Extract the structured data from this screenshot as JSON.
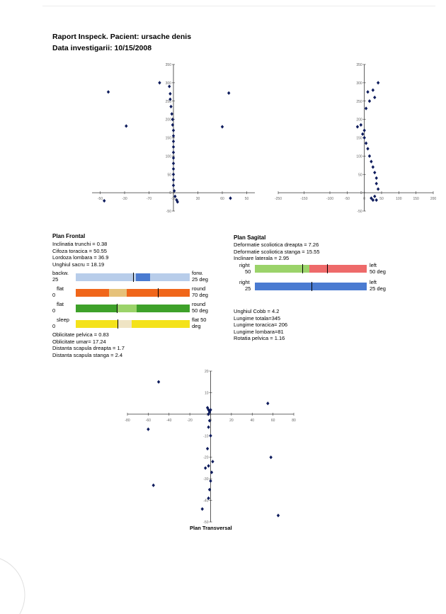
{
  "header": {
    "title": "Raport Inspeck. Pacient: ursache   denis",
    "date": "Data investigarii: 10/15/2008"
  },
  "plots": {
    "frontal": {
      "x_ticks": [
        "-90",
        "-80",
        "-70",
        "-60",
        "-50",
        "-40",
        "-30",
        "-20",
        "-10",
        "0",
        "10",
        "20",
        "30",
        "40",
        "50",
        "60",
        "70",
        "80",
        "90"
      ],
      "x_ticks_show": [
        "-50",
        "-30",
        "-70",
        "50",
        "30",
        "60",
        "50"
      ],
      "y_ticks": [
        "350",
        "300",
        "250",
        "200",
        "150",
        "100",
        "50",
        "0",
        "-50"
      ]
    },
    "transversal": {
      "title": "Plan Transversal"
    }
  },
  "chart_data": [
    {
      "type": "scatter",
      "title": "",
      "x_ticks": [
        "-50",
        "-30",
        "-70",
        "-10",
        "30",
        "60",
        "50"
      ],
      "y_ticks": [
        "350",
        "300",
        "250",
        "200",
        "150",
        "100",
        "50",
        "0",
        "-50"
      ],
      "xlim": [
        -100,
        100
      ],
      "ylim": [
        -50,
        350
      ],
      "points": [
        [
          -17,
          300
        ],
        [
          -5,
          290
        ],
        [
          -4,
          270
        ],
        [
          -4,
          255
        ],
        [
          -3,
          235
        ],
        [
          -2,
          215
        ],
        [
          -1,
          200
        ],
        [
          -1,
          185
        ],
        [
          0,
          170
        ],
        [
          0,
          155
        ],
        [
          0,
          140
        ],
        [
          0,
          125
        ],
        [
          0,
          110
        ],
        [
          0,
          95
        ],
        [
          0,
          80
        ],
        [
          0,
          65
        ],
        [
          0,
          50
        ],
        [
          0,
          35
        ],
        [
          0,
          20
        ],
        [
          1,
          5
        ],
        [
          2,
          -10
        ],
        [
          4,
          -20
        ],
        [
          5,
          -25
        ],
        [
          -80,
          275
        ],
        [
          -58,
          182
        ],
        [
          68,
          272
        ],
        [
          60,
          180
        ],
        [
          70,
          -15
        ],
        [
          -85,
          -22
        ]
      ]
    },
    {
      "type": "scatter",
      "title": "",
      "x_ticks": [
        "-250",
        "-150",
        "-100",
        "-50",
        "0",
        "50",
        "100",
        "150",
        "200"
      ],
      "y_ticks": [
        "350",
        "300",
        "250",
        "200",
        "150",
        "100",
        "50",
        "0",
        "-50"
      ],
      "xlim": [
        -250,
        200
      ],
      "ylim": [
        -50,
        350
      ],
      "points": [
        [
          40,
          300
        ],
        [
          25,
          280
        ],
        [
          10,
          275
        ],
        [
          30,
          260
        ],
        [
          15,
          250
        ],
        [
          5,
          230
        ],
        [
          -10,
          185
        ],
        [
          -20,
          180
        ],
        [
          0,
          170
        ],
        [
          -5,
          160
        ],
        [
          0,
          150
        ],
        [
          5,
          135
        ],
        [
          10,
          120
        ],
        [
          15,
          100
        ],
        [
          20,
          85
        ],
        [
          25,
          70
        ],
        [
          30,
          55
        ],
        [
          35,
          40
        ],
        [
          35,
          25
        ],
        [
          40,
          10
        ],
        [
          30,
          -10
        ],
        [
          25,
          -20
        ],
        [
          20,
          -15
        ],
        [
          35,
          -20
        ]
      ]
    },
    {
      "type": "scatter",
      "title": "Plan Transversal",
      "x_ticks": [
        "-80",
        "-60",
        "-40",
        "-20",
        "0",
        "20",
        "40",
        "60",
        "80"
      ],
      "y_ticks": [
        "20",
        "10",
        "0",
        "-10",
        "-20",
        "-30",
        "-40",
        "-50"
      ],
      "xlim": [
        -80,
        80
      ],
      "ylim": [
        -50,
        20
      ],
      "points": [
        [
          -50,
          15
        ],
        [
          -3,
          3
        ],
        [
          -2,
          2
        ],
        [
          0,
          2
        ],
        [
          -1,
          1
        ],
        [
          -2,
          0
        ],
        [
          -1,
          -3
        ],
        [
          -2,
          -6
        ],
        [
          0,
          -10
        ],
        [
          -3,
          -16
        ],
        [
          2,
          -22
        ],
        [
          -2,
          -24
        ],
        [
          1,
          -27
        ],
        [
          -5,
          -25
        ],
        [
          0,
          -31
        ],
        [
          -1,
          -35
        ],
        [
          -2,
          -39
        ],
        [
          -8,
          -44
        ],
        [
          55,
          5
        ],
        [
          58,
          -20
        ],
        [
          65,
          -47
        ],
        [
          -60,
          -7
        ],
        [
          -55,
          -33
        ]
      ]
    }
  ],
  "frontal": {
    "title": "Plan Frontal",
    "lines": [
      "Inclinatia trunchi = 0.38",
      "Cifoza toracica = 50.55",
      "Lordoza lombara =  36.9",
      "Unghiul sacru = 18.19"
    ],
    "scales": [
      {
        "left_top": "backw.",
        "left_bottom": "25",
        "right_top": "forw.",
        "right_bottom": "25 deg"
      },
      {
        "left_top": "flat",
        "left_bottom": "0",
        "right_top": "round",
        "right_bottom": "70 deg"
      },
      {
        "left_top": "flat",
        "left_bottom": "0",
        "right_top": "round",
        "right_bottom": "50 deg"
      },
      {
        "left_top": "sleep",
        "left_bottom": "0",
        "right_top": "flat  50",
        "right_bottom": "deg"
      }
    ],
    "footer_lines": [
      "Oblicitate pelvica = 0.83",
      "Oblicitate umar= 17.24",
      "Distanta scapula dreapta = 1.7",
      "Distanta scapula stanga = 2.4"
    ]
  },
  "sagital": {
    "title": "Plan Sagital",
    "lines": [
      "Deformatie scoliotica dreapta = 7.26",
      "Deformatie scoliotica stanga = 15.55",
      "Inclinare laterala = 2.95"
    ],
    "scales": [
      {
        "left_top": "right",
        "left_bottom": "50",
        "right_top": "left",
        "right_bottom": "50 deg"
      },
      {
        "left_top": "right",
        "left_bottom": "25",
        "right_top": "left",
        "right_bottom": "25 deg"
      }
    ],
    "footer_lines": [
      "Unghiul Cobb = 4.2",
      "Lungime totala=345",
      "Lungime toracica= 206",
      "Lungime lombara=81",
      "Rotatia pelvica = 1.16"
    ]
  },
  "colors": {
    "point": "#0d1b5c",
    "axis": "#333333",
    "light_blue": "#b8cdea",
    "blue": "#4a7bd1",
    "orange": "#f0661a",
    "tan": "#e6c27a",
    "green": "#3ea12a",
    "light_green": "#9bd36a",
    "yellow": "#f4e21a",
    "cream": "#efe4c4",
    "red": "#ee6a6a"
  }
}
